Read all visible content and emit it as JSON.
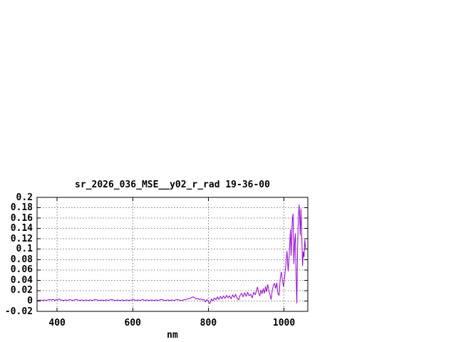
{
  "window": {
    "background": "#ffffff"
  },
  "chart_data": {
    "type": "line",
    "title": "sr_2026_036_MSE__y02_r_rad 19-36-00",
    "xlabel": "nm",
    "ylabel": "",
    "xlim": [
      347,
      1063
    ],
    "ylim": [
      -0.02,
      0.2
    ],
    "x_ticks": [
      400,
      600,
      800,
      1000
    ],
    "y_ticks": [
      -0.02,
      0,
      0.02,
      0.04,
      0.06,
      0.08,
      0.1,
      0.12,
      0.14,
      0.16,
      0.18,
      0.2
    ],
    "grid": true,
    "legend_position": "none",
    "colors": {
      "line": "#9400d3",
      "grid": "#9e9e9e",
      "border": "#000000",
      "text": "#000000",
      "background": "#ffffff"
    },
    "series": [
      {
        "name": "sr_2026_036_MSE__y02_r_rad",
        "points": [
          [
            348,
            0.001
          ],
          [
            354,
            0.002
          ],
          [
            360,
            0.001
          ],
          [
            366,
            0.002
          ],
          [
            372,
            0.001
          ],
          [
            378,
            0.003
          ],
          [
            384,
            0.002
          ],
          [
            390,
            0.003
          ],
          [
            394,
            0.001
          ],
          [
            398,
            0.003
          ],
          [
            402,
            0.002
          ],
          [
            406,
            0.004
          ],
          [
            410,
            0.002
          ],
          [
            416,
            0.001
          ],
          [
            422,
            0.002
          ],
          [
            428,
            0.001
          ],
          [
            434,
            0.003
          ],
          [
            440,
            0.001
          ],
          [
            446,
            0.002
          ],
          [
            452,
            0.003
          ],
          [
            458,
            0.001
          ],
          [
            464,
            0.002
          ],
          [
            470,
            0.001
          ],
          [
            476,
            0.002
          ],
          [
            482,
            0.001
          ],
          [
            488,
            0.002
          ],
          [
            494,
            0.001
          ],
          [
            500,
            0.003
          ],
          [
            506,
            0.002
          ],
          [
            512,
            0.001
          ],
          [
            518,
            0.002
          ],
          [
            524,
            0.001
          ],
          [
            530,
            0.002
          ],
          [
            536,
            0.001
          ],
          [
            542,
            0.003
          ],
          [
            548,
            0.002
          ],
          [
            554,
            0.001
          ],
          [
            560,
            0.002
          ],
          [
            566,
            0.001
          ],
          [
            572,
            0.002
          ],
          [
            578,
            0.001
          ],
          [
            584,
            0.002
          ],
          [
            590,
            0.001
          ],
          [
            596,
            0.002
          ],
          [
            602,
            0.003
          ],
          [
            608,
            0.001
          ],
          [
            614,
            0.002
          ],
          [
            620,
            0.001
          ],
          [
            626,
            0.003
          ],
          [
            632,
            0.001
          ],
          [
            638,
            0.002
          ],
          [
            644,
            0.001
          ],
          [
            650,
            0.002
          ],
          [
            656,
            0.001
          ],
          [
            662,
            0.002
          ],
          [
            668,
            0.001
          ],
          [
            674,
            0.003
          ],
          [
            680,
            0.002
          ],
          [
            686,
            0.001
          ],
          [
            692,
            0.002
          ],
          [
            698,
            0.001
          ],
          [
            704,
            0.002
          ],
          [
            710,
            0.001
          ],
          [
            716,
            0.003
          ],
          [
            722,
            0.002
          ],
          [
            728,
            0.001
          ],
          [
            734,
            0.002
          ],
          [
            740,
            0.003
          ],
          [
            746,
            0.004
          ],
          [
            752,
            0.005
          ],
          [
            756,
            0.007
          ],
          [
            760,
            0.008
          ],
          [
            764,
            0.006
          ],
          [
            768,
            0.004
          ],
          [
            772,
            0.005
          ],
          [
            776,
            0.003
          ],
          [
            780,
            0.004
          ],
          [
            784,
            0.002
          ],
          [
            788,
            0.003
          ],
          [
            792,
            -0.002
          ],
          [
            796,
            0.003
          ],
          [
            800,
            -0.001
          ],
          [
            804,
            -0.005
          ],
          [
            808,
            0.004
          ],
          [
            812,
            0.0
          ],
          [
            816,
            0.006
          ],
          [
            820,
            0.002
          ],
          [
            824,
            0.008
          ],
          [
            828,
            0.003
          ],
          [
            832,
            0.009
          ],
          [
            836,
            0.004
          ],
          [
            840,
            0.01
          ],
          [
            844,
            0.005
          ],
          [
            848,
            0.011
          ],
          [
            852,
            0.006
          ],
          [
            856,
            0.01
          ],
          [
            860,
            0.004
          ],
          [
            864,
            0.012
          ],
          [
            868,
            0.007
          ],
          [
            872,
            0.013
          ],
          [
            876,
            0.005
          ],
          [
            880,
            0.002
          ],
          [
            884,
            0.011
          ],
          [
            888,
            0.015
          ],
          [
            892,
            0.008
          ],
          [
            896,
            0.016
          ],
          [
            900,
            0.009
          ],
          [
            904,
            0.017
          ],
          [
            908,
            0.01
          ],
          [
            912,
            0.013
          ],
          [
            916,
            0.006
          ],
          [
            920,
            0.017
          ],
          [
            924,
            0.012
          ],
          [
            928,
            0.022
          ],
          [
            930,
            0.027
          ],
          [
            933,
            0.016
          ],
          [
            936,
            0.01
          ],
          [
            939,
            0.021
          ],
          [
            942,
            0.014
          ],
          [
            945,
            0.024
          ],
          [
            948,
            0.015
          ],
          [
            951,
            0.028
          ],
          [
            954,
            0.018
          ],
          [
            957,
            0.032
          ],
          [
            960,
            0.021
          ],
          [
            963,
            0.012
          ],
          [
            966,
            0.003
          ],
          [
            969,
            0.02
          ],
          [
            972,
            0.03
          ],
          [
            975,
            0.034
          ],
          [
            978,
            0.024
          ],
          [
            981,
            0.035
          ],
          [
            984,
            0.014
          ],
          [
            987,
            0.011
          ],
          [
            990,
            0.043
          ],
          [
            993,
            0.056
          ],
          [
            996,
            0.04
          ],
          [
            999,
            0.028
          ],
          [
            1002,
            0.048
          ],
          [
            1005,
            0.07
          ],
          [
            1008,
            0.096
          ],
          [
            1011,
            0.058
          ],
          [
            1014,
            0.09
          ],
          [
            1017,
            0.138
          ],
          [
            1019,
            0.088
          ],
          [
            1022,
            0.155
          ],
          [
            1024,
            0.168
          ],
          [
            1026,
            0.072
          ],
          [
            1028,
            0.11
          ],
          [
            1030,
            0.13
          ],
          [
            1032,
            0.055
          ],
          [
            1034,
            -0.004
          ],
          [
            1036,
            0.105
          ],
          [
            1038,
            0.158
          ],
          [
            1040,
            0.186
          ],
          [
            1042,
            0.15
          ],
          [
            1043,
            0.127
          ],
          [
            1045,
            0.178
          ],
          [
            1047,
            0.125
          ],
          [
            1049,
            0.068
          ],
          [
            1051,
            0.095
          ],
          [
            1053,
            0.085
          ],
          [
            1055,
            0.118
          ],
          [
            1057,
            0.102
          ]
        ]
      }
    ]
  }
}
